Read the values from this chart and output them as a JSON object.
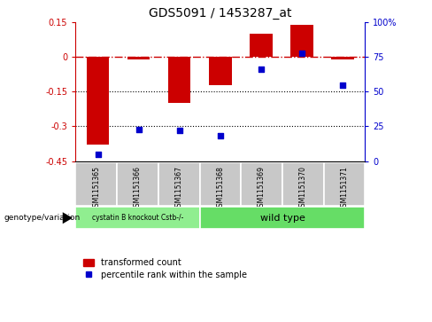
{
  "title": "GDS5091 / 1453287_at",
  "samples": [
    "GSM1151365",
    "GSM1151366",
    "GSM1151367",
    "GSM1151368",
    "GSM1151369",
    "GSM1151370",
    "GSM1151371"
  ],
  "bar_values": [
    -0.38,
    -0.01,
    -0.2,
    -0.12,
    0.1,
    0.14,
    -0.01
  ],
  "percentile_values": [
    5,
    23,
    22,
    18,
    66,
    78,
    55
  ],
  "ylim_left": [
    -0.45,
    0.15
  ],
  "ylim_right": [
    0,
    100
  ],
  "yticks_left": [
    0.15,
    0,
    -0.15,
    -0.3,
    -0.45
  ],
  "yticks_right": [
    100,
    75,
    50,
    25,
    0
  ],
  "dotted_lines": [
    -0.15,
    -0.3
  ],
  "bar_color": "#cc0000",
  "scatter_color": "#0000cc",
  "group1_label": "cystatin B knockout Cstb-/-",
  "group1_count": 3,
  "group2_label": "wild type",
  "group2_count": 4,
  "group_bg1": "#90ee90",
  "group_bg2": "#66dd66",
  "sample_bg": "#c8c8c8",
  "legend_bar_label": "transformed count",
  "legend_scatter_label": "percentile rank within the sample",
  "genotype_label": "genotype/variation"
}
